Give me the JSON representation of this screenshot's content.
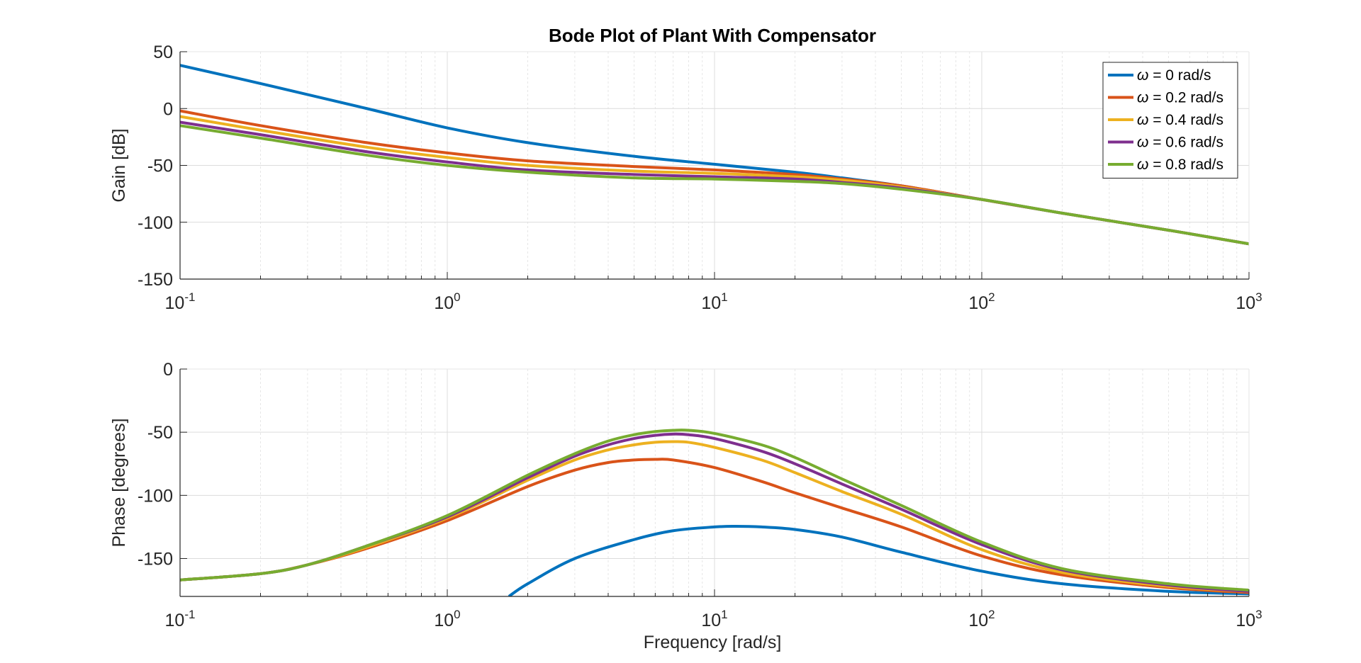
{
  "chart_data": {
    "type": "line",
    "title": "Bode Plot of Plant With Compensator",
    "legend": {
      "location": "top-right",
      "entries": [
        {
          "symbol": "ω",
          "text": " = 0 rad/s",
          "color": "#0072BD"
        },
        {
          "symbol": "ω",
          "text": " = 0.2 rad/s",
          "color": "#D95319"
        },
        {
          "symbol": "ω",
          "text": " = 0.4 rad/s",
          "color": "#EDB120"
        },
        {
          "symbol": "ω",
          "text": " = 0.6 rad/s",
          "color": "#7E2F8E"
        },
        {
          "symbol": "ω",
          "text": " = 0.8 rad/s",
          "color": "#77AC30"
        }
      ]
    },
    "xscale": "log",
    "xlim": [
      0.1,
      1000
    ],
    "xticks": [
      {
        "base": "10",
        "exp": "-1",
        "value": 0.1
      },
      {
        "base": "10",
        "exp": "0",
        "value": 1
      },
      {
        "base": "10",
        "exp": "1",
        "value": 10
      },
      {
        "base": "10",
        "exp": "2",
        "value": 100
      },
      {
        "base": "10",
        "exp": "3",
        "value": 1000
      }
    ],
    "xlabel": "Frequency [rad/s]",
    "grid": true,
    "panels": [
      {
        "name": "gain",
        "ylabel": "Gain [dB]",
        "ylim": [
          -150,
          50
        ],
        "yticks": [
          50,
          0,
          -50,
          -100,
          -150
        ],
        "series": [
          {
            "name": "ω = 0 rad/s",
            "color": "#0072BD",
            "x": [
              0.1,
              0.2,
              0.5,
              1,
              2,
              5,
              10,
              20,
              30,
              50,
              100,
              200,
              500,
              1000
            ],
            "y": [
              38,
              22,
              0,
              -17,
              -30,
              -42,
              -49,
              -56,
              -61,
              -68,
              -80,
              -92,
              -107,
              -119
            ]
          },
          {
            "name": "ω = 0.2 rad/s",
            "color": "#D95319",
            "x": [
              0.1,
              0.2,
              0.5,
              1,
              2,
              5,
              10,
              20,
              30,
              50,
              100,
              200,
              500,
              1000
            ],
            "y": [
              -2,
              -15,
              -30,
              -39,
              -46,
              -51,
              -54,
              -58,
              -62,
              -68,
              -80,
              -92,
              -107,
              -119
            ]
          },
          {
            "name": "ω = 0.4 rad/s",
            "color": "#EDB120",
            "x": [
              0.1,
              0.2,
              0.5,
              1,
              2,
              5,
              10,
              20,
              30,
              50,
              100,
              200,
              500,
              1000
            ],
            "y": [
              -7,
              -19,
              -34,
              -43,
              -50,
              -55,
              -57,
              -60,
              -63,
              -69,
              -80,
              -92,
              -107,
              -119
            ]
          },
          {
            "name": "ω = 0.6 rad/s",
            "color": "#7E2F8E",
            "x": [
              0.1,
              0.2,
              0.5,
              1,
              2,
              5,
              10,
              20,
              30,
              50,
              100,
              200,
              500,
              1000
            ],
            "y": [
              -12,
              -23,
              -38,
              -47,
              -54,
              -58,
              -60,
              -62,
              -65,
              -70,
              -80,
              -92,
              -107,
              -119
            ]
          },
          {
            "name": "ω = 0.8 rad/s",
            "color": "#77AC30",
            "x": [
              0.1,
              0.2,
              0.5,
              1,
              2,
              5,
              10,
              20,
              30,
              50,
              100,
              200,
              500,
              1000
            ],
            "y": [
              -15,
              -26,
              -41,
              -50,
              -56,
              -61,
              -62,
              -64,
              -66,
              -71,
              -80,
              -92,
              -107,
              -119
            ]
          }
        ]
      },
      {
        "name": "phase",
        "ylabel": "Phase [degrees]",
        "ylim": [
          -180,
          0
        ],
        "yticks": [
          0,
          -50,
          -100,
          -150
        ],
        "series": [
          {
            "name": "ω = 0 rad/s",
            "color": "#0072BD",
            "x": [
              1.7,
              2,
              3,
              5,
              7,
              10,
              12,
              15,
              20,
              30,
              50,
              100,
              200,
              500,
              1000
            ],
            "y": [
              -180,
              -170,
              -150,
              -135,
              -128,
              -125,
              -124.5,
              -125,
              -127,
              -133,
              -145,
              -160,
              -170,
              -176,
              -178
            ]
          },
          {
            "name": "ω = 0.2 rad/s",
            "color": "#D95319",
            "x": [
              0.1,
              0.2,
              0.3,
              0.5,
              1,
              2,
              3,
              4,
              5,
              6,
              7,
              10,
              15,
              20,
              30,
              50,
              100,
              200,
              500,
              1000
            ],
            "y": [
              -167,
              -162,
              -155,
              -142,
              -120,
              -93,
              -80,
              -74,
              -72,
              -71.5,
              -72,
              -78,
              -89,
              -98,
              -110,
              -125,
              -148,
              -163,
              -173,
              -177
            ]
          },
          {
            "name": "ω = 0.4 rad/s",
            "color": "#EDB120",
            "x": [
              0.1,
              0.2,
              0.3,
              0.5,
              1,
              2,
              3,
              4,
              5,
              6,
              7,
              8,
              10,
              15,
              20,
              30,
              50,
              100,
              200,
              500,
              1000
            ],
            "y": [
              -167,
              -162,
              -155,
              -141,
              -118,
              -88,
              -72,
              -64,
              -60,
              -58,
              -57.5,
              -58,
              -62,
              -72,
              -82,
              -97,
              -115,
              -143,
              -161,
              -172,
              -176
            ]
          },
          {
            "name": "ω = 0.6 rad/s",
            "color": "#7E2F8E",
            "x": [
              0.1,
              0.2,
              0.3,
              0.5,
              1,
              2,
              3,
              4,
              5,
              6,
              7,
              8,
              10,
              15,
              20,
              30,
              50,
              100,
              200,
              500,
              1000
            ],
            "y": [
              -167,
              -162,
              -155,
              -140,
              -117,
              -86,
              -69,
              -60,
              -55,
              -52.5,
              -51.5,
              -52,
              -55,
              -65,
              -75,
              -91,
              -111,
              -139,
              -159,
              -171,
              -176
            ]
          },
          {
            "name": "ω = 0.8 rad/s",
            "color": "#77AC30",
            "x": [
              0.1,
              0.2,
              0.3,
              0.5,
              1,
              2,
              3,
              4,
              5,
              6,
              7,
              8,
              10,
              15,
              20,
              30,
              50,
              100,
              200,
              500,
              1000
            ],
            "y": [
              -167,
              -162,
              -155,
              -140,
              -116,
              -84,
              -67,
              -57,
              -52,
              -49.5,
              -48.5,
              -48.5,
              -51,
              -60,
              -70,
              -87,
              -108,
              -137,
              -158,
              -170,
              -175
            ]
          }
        ]
      }
    ]
  }
}
